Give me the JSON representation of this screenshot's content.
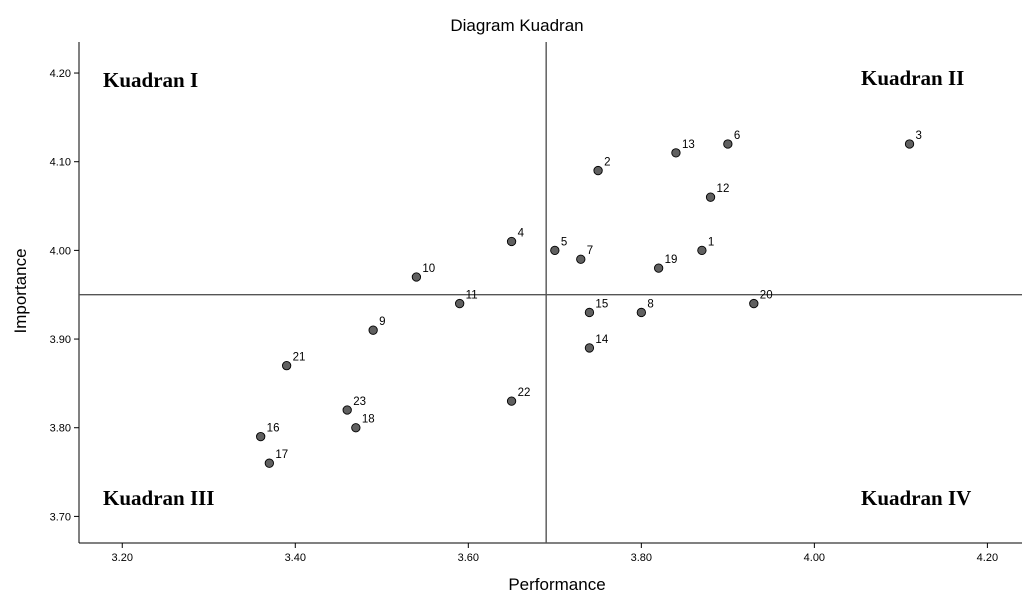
{
  "chart_data": {
    "type": "scatter",
    "title": "Diagram Kuadran",
    "xlabel": "Performance",
    "ylabel": "Importance",
    "xlim": [
      3.15,
      4.24
    ],
    "ylim": [
      3.67,
      4.235
    ],
    "xticks": [
      "3.20",
      "3.40",
      "3.60",
      "3.80",
      "4.00",
      "4.20"
    ],
    "yticks": [
      "3.70",
      "3.80",
      "3.90",
      "4.00",
      "4.10",
      "4.20"
    ],
    "reference_lines": {
      "x": 3.69,
      "y": 3.95
    },
    "quadrant_labels": {
      "top_left": "Kuadran I",
      "top_right": "Kuadran II",
      "bottom_left": "Kuadran III",
      "bottom_right": "Kuadran IV"
    },
    "marker_color": "#606060",
    "points": [
      {
        "label": "1",
        "x": 3.87,
        "y": 4.0
      },
      {
        "label": "2",
        "x": 3.75,
        "y": 4.09
      },
      {
        "label": "3",
        "x": 4.11,
        "y": 4.12
      },
      {
        "label": "4",
        "x": 3.65,
        "y": 4.01
      },
      {
        "label": "5",
        "x": 3.7,
        "y": 4.0
      },
      {
        "label": "6",
        "x": 3.9,
        "y": 4.12
      },
      {
        "label": "7",
        "x": 3.73,
        "y": 3.99
      },
      {
        "label": "8",
        "x": 3.8,
        "y": 3.93
      },
      {
        "label": "9",
        "x": 3.49,
        "y": 3.91
      },
      {
        "label": "10",
        "x": 3.54,
        "y": 3.97
      },
      {
        "label": "11",
        "x": 3.59,
        "y": 3.94
      },
      {
        "label": "12",
        "x": 3.88,
        "y": 4.06
      },
      {
        "label": "13",
        "x": 3.84,
        "y": 4.11
      },
      {
        "label": "14",
        "x": 3.74,
        "y": 3.89
      },
      {
        "label": "15",
        "x": 3.74,
        "y": 3.93
      },
      {
        "label": "16",
        "x": 3.36,
        "y": 3.79
      },
      {
        "label": "17",
        "x": 3.37,
        "y": 3.76
      },
      {
        "label": "18",
        "x": 3.47,
        "y": 3.8
      },
      {
        "label": "19",
        "x": 3.82,
        "y": 3.98
      },
      {
        "label": "20",
        "x": 3.93,
        "y": 3.94
      },
      {
        "label": "21",
        "x": 3.39,
        "y": 3.87
      },
      {
        "label": "22",
        "x": 3.65,
        "y": 3.83
      },
      {
        "label": "23",
        "x": 3.46,
        "y": 3.82
      }
    ]
  }
}
